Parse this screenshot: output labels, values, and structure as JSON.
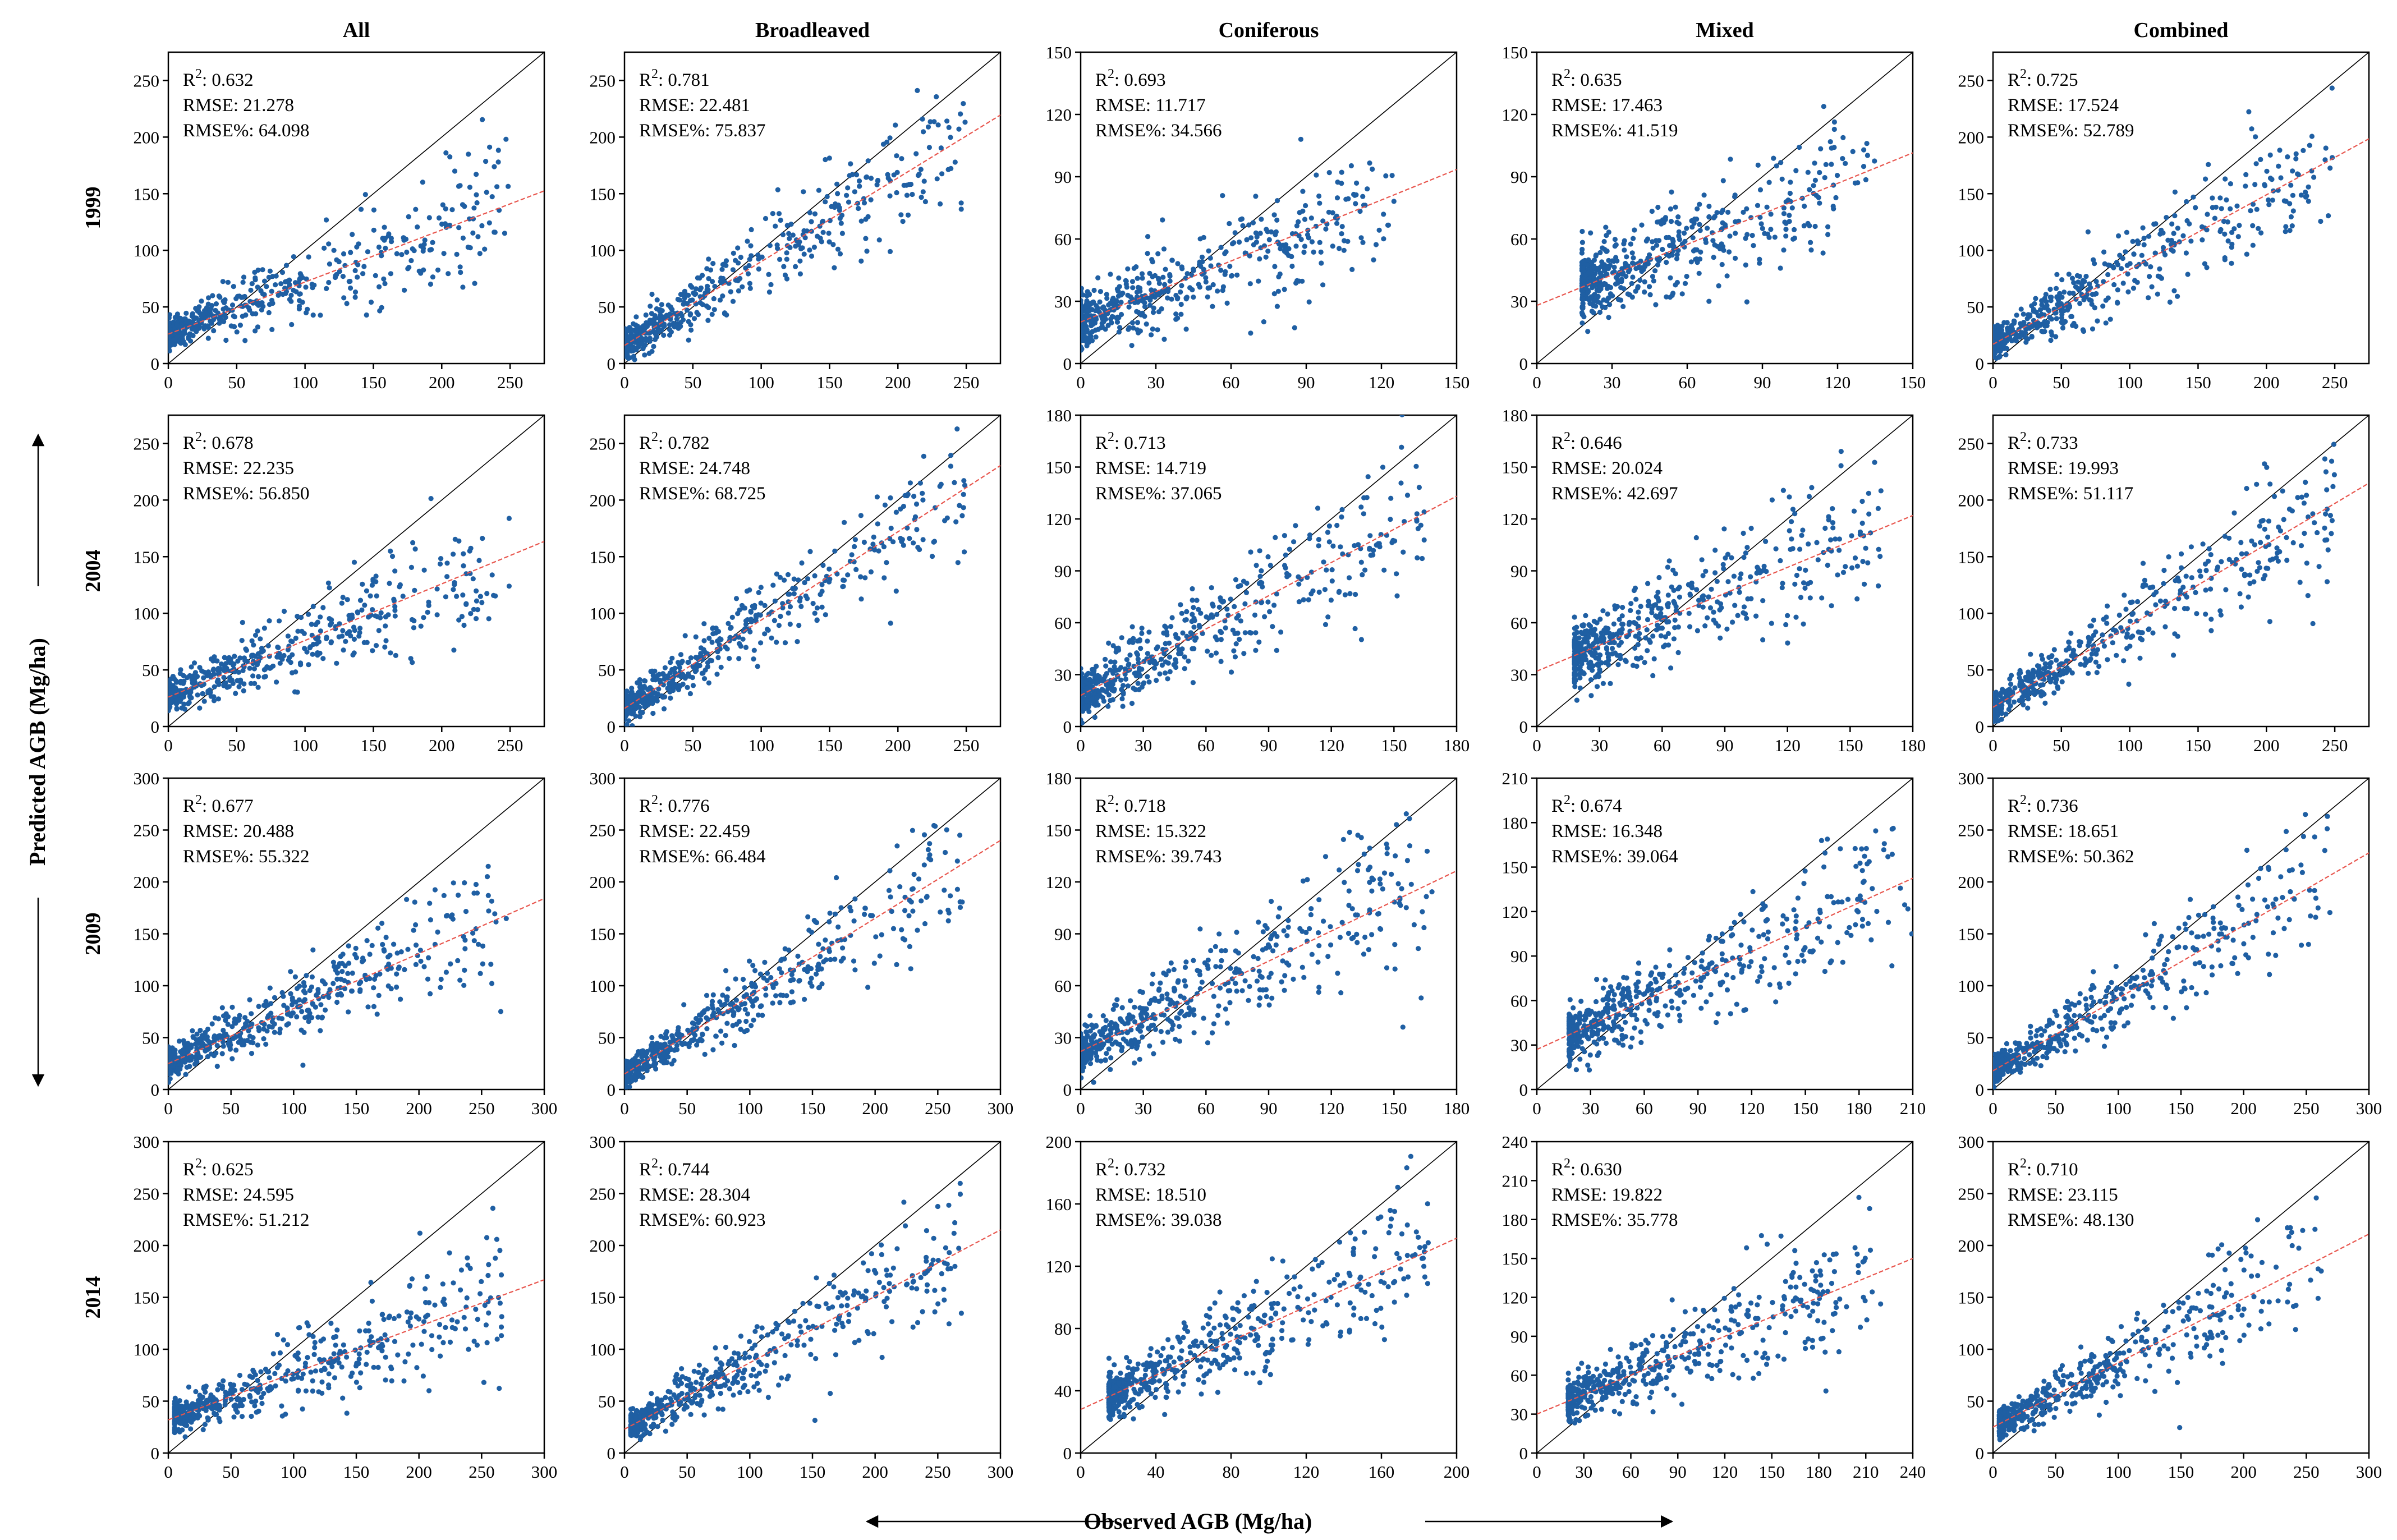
{
  "figure": {
    "columns": [
      "All",
      "Broadleaved",
      "Coniferous",
      "Mixed",
      "Combined"
    ],
    "rows": [
      "1999",
      "2004",
      "2009",
      "2014"
    ],
    "xlabel": "Observed AGB (Mg/ha)",
    "ylabel": "Predicted AGB (Mg/ha)",
    "colors": {
      "points": "#1f5fa3",
      "fit_line": "#e8564e",
      "one_to_one": "#000000"
    }
  },
  "chart_data": [
    {
      "type": "scatter",
      "row": "1999",
      "column": "All",
      "axis_max": 275,
      "ticks": [
        0,
        50,
        100,
        150,
        200,
        250
      ],
      "r2": "0.632",
      "rmse": "21.278",
      "rmse_pct": "64.098",
      "obs_range": [
        0,
        250
      ],
      "fit": {
        "intercept": 26,
        "slope": 0.46
      }
    },
    {
      "type": "scatter",
      "row": "1999",
      "column": "Broadleaved",
      "axis_max": 275,
      "ticks": [
        0,
        50,
        100,
        150,
        200,
        250
      ],
      "r2": "0.781",
      "rmse": "22.481",
      "rmse_pct": "75.837",
      "obs_range": [
        0,
        250
      ],
      "fit": {
        "intercept": 16,
        "slope": 0.74
      }
    },
    {
      "type": "scatter",
      "row": "1999",
      "column": "Coniferous",
      "axis_max": 150,
      "ticks": [
        0,
        30,
        60,
        90,
        120,
        150
      ],
      "r2": "0.693",
      "rmse": "11.717",
      "rmse_pct": "34.566",
      "obs_range": [
        0,
        125
      ],
      "fit": {
        "intercept": 20,
        "slope": 0.49
      }
    },
    {
      "type": "scatter",
      "row": "1999",
      "column": "Mixed",
      "axis_max": 150,
      "ticks": [
        0,
        30,
        60,
        90,
        120,
        150
      ],
      "r2": "0.635",
      "rmse": "17.463",
      "rmse_pct": "41.519",
      "obs_range": [
        18,
        135
      ],
      "fit": {
        "intercept": 28,
        "slope": 0.49
      }
    },
    {
      "type": "scatter",
      "row": "1999",
      "column": "Combined",
      "axis_max": 275,
      "ticks": [
        0,
        50,
        100,
        150,
        200,
        250
      ],
      "r2": "0.725",
      "rmse": "17.524",
      "rmse_pct": "52.789",
      "obs_range": [
        0,
        250
      ],
      "fit": {
        "intercept": 17,
        "slope": 0.66
      }
    },
    {
      "type": "scatter",
      "row": "2004",
      "column": "All",
      "axis_max": 275,
      "ticks": [
        0,
        50,
        100,
        150,
        200,
        250
      ],
      "r2": "0.678",
      "rmse": "22.235",
      "rmse_pct": "56.850",
      "obs_range": [
        0,
        250
      ],
      "fit": {
        "intercept": 26,
        "slope": 0.5
      }
    },
    {
      "type": "scatter",
      "row": "2004",
      "column": "Broadleaved",
      "axis_max": 275,
      "ticks": [
        0,
        50,
        100,
        150,
        200,
        250
      ],
      "r2": "0.782",
      "rmse": "24.748",
      "rmse_pct": "68.725",
      "obs_range": [
        0,
        250
      ],
      "fit": {
        "intercept": 16,
        "slope": 0.78
      }
    },
    {
      "type": "scatter",
      "row": "2004",
      "column": "Coniferous",
      "axis_max": 180,
      "ticks": [
        0,
        30,
        60,
        90,
        120,
        150,
        180
      ],
      "r2": "0.713",
      "rmse": "14.719",
      "rmse_pct": "37.065",
      "obs_range": [
        0,
        165
      ],
      "fit": {
        "intercept": 18,
        "slope": 0.64
      }
    },
    {
      "type": "scatter",
      "row": "2004",
      "column": "Mixed",
      "axis_max": 180,
      "ticks": [
        0,
        30,
        60,
        90,
        120,
        150,
        180
      ],
      "r2": "0.646",
      "rmse": "20.024",
      "rmse_pct": "42.697",
      "obs_range": [
        18,
        165
      ],
      "fit": {
        "intercept": 32,
        "slope": 0.5
      }
    },
    {
      "type": "scatter",
      "row": "2004",
      "column": "Combined",
      "axis_max": 275,
      "ticks": [
        0,
        50,
        100,
        150,
        200,
        250
      ],
      "r2": "0.733",
      "rmse": "19.993",
      "rmse_pct": "51.117",
      "obs_range": [
        0,
        250
      ],
      "fit": {
        "intercept": 17,
        "slope": 0.72
      }
    },
    {
      "type": "scatter",
      "row": "2009",
      "column": "All",
      "axis_max": 300,
      "ticks": [
        0,
        50,
        100,
        150,
        200,
        250,
        300
      ],
      "r2": "0.677",
      "rmse": "20.488",
      "rmse_pct": "55.322",
      "obs_range": [
        0,
        270
      ],
      "fit": {
        "intercept": 25,
        "slope": 0.53
      }
    },
    {
      "type": "scatter",
      "row": "2009",
      "column": "Broadleaved",
      "axis_max": 300,
      "ticks": [
        0,
        50,
        100,
        150,
        200,
        250,
        300
      ],
      "r2": "0.776",
      "rmse": "22.459",
      "rmse_pct": "66.484",
      "obs_range": [
        0,
        270
      ],
      "fit": {
        "intercept": 15,
        "slope": 0.75
      }
    },
    {
      "type": "scatter",
      "row": "2009",
      "column": "Coniferous",
      "axis_max": 180,
      "ticks": [
        0,
        30,
        60,
        90,
        120,
        150,
        180
      ],
      "r2": "0.718",
      "rmse": "15.322",
      "rmse_pct": "39.743",
      "obs_range": [
        0,
        170
      ],
      "fit": {
        "intercept": 22,
        "slope": 0.58
      }
    },
    {
      "type": "scatter",
      "row": "2009",
      "column": "Mixed",
      "axis_max": 210,
      "ticks": [
        0,
        30,
        60,
        90,
        120,
        150,
        180,
        210
      ],
      "r2": "0.674",
      "rmse": "16.348",
      "rmse_pct": "39.064",
      "obs_range": [
        18,
        210
      ],
      "fit": {
        "intercept": 27,
        "slope": 0.55
      }
    },
    {
      "type": "scatter",
      "row": "2009",
      "column": "Combined",
      "axis_max": 300,
      "ticks": [
        0,
        50,
        100,
        150,
        200,
        250,
        300
      ],
      "r2": "0.736",
      "rmse": "18.651",
      "rmse_pct": "50.362",
      "obs_range": [
        0,
        270
      ],
      "fit": {
        "intercept": 18,
        "slope": 0.7
      }
    },
    {
      "type": "scatter",
      "row": "2014",
      "column": "All",
      "axis_max": 300,
      "ticks": [
        0,
        50,
        100,
        150,
        200,
        250,
        300
      ],
      "r2": "0.625",
      "rmse": "24.595",
      "rmse_pct": "51.212",
      "obs_range": [
        5,
        270
      ],
      "fit": {
        "intercept": 32,
        "slope": 0.45
      }
    },
    {
      "type": "scatter",
      "row": "2014",
      "column": "Broadleaved",
      "axis_max": 300,
      "ticks": [
        0,
        50,
        100,
        150,
        200,
        250,
        300
      ],
      "r2": "0.744",
      "rmse": "28.304",
      "rmse_pct": "60.923",
      "obs_range": [
        5,
        270
      ],
      "fit": {
        "intercept": 23,
        "slope": 0.64
      }
    },
    {
      "type": "scatter",
      "row": "2014",
      "column": "Coniferous",
      "axis_max": 200,
      "ticks": [
        0,
        40,
        80,
        120,
        160,
        200
      ],
      "r2": "0.732",
      "rmse": "18.510",
      "rmse_pct": "39.038",
      "obs_range": [
        15,
        185
      ],
      "fit": {
        "intercept": 28,
        "slope": 0.55
      }
    },
    {
      "type": "scatter",
      "row": "2014",
      "column": "Mixed",
      "axis_max": 240,
      "ticks": [
        0,
        30,
        60,
        90,
        120,
        150,
        180,
        210,
        240
      ],
      "r2": "0.630",
      "rmse": "19.822",
      "rmse_pct": "35.778",
      "obs_range": [
        20,
        220
      ],
      "fit": {
        "intercept": 30,
        "slope": 0.5
      }
    },
    {
      "type": "scatter",
      "row": "2014",
      "column": "Combined",
      "axis_max": 300,
      "ticks": [
        0,
        50,
        100,
        150,
        200,
        250,
        300
      ],
      "r2": "0.710",
      "rmse": "23.115",
      "rmse_pct": "48.130",
      "obs_range": [
        5,
        270
      ],
      "fit": {
        "intercept": 25,
        "slope": 0.62
      }
    }
  ]
}
